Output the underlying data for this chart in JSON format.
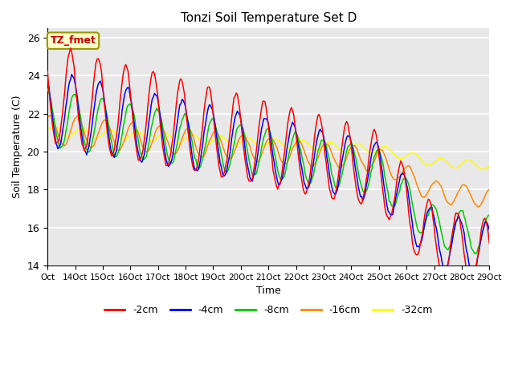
{
  "title": "Tonzi Soil Temperature Set D",
  "xlabel": "Time",
  "ylabel": "Soil Temperature (C)",
  "ylim": [
    14,
    26.5
  ],
  "xlim_days": [
    13,
    29
  ],
  "series_colors": [
    "#ff0000",
    "#0000ff",
    "#00cc00",
    "#ff8800",
    "#ffff00"
  ],
  "series_labels": [
    "-2cm",
    "-4cm",
    "-8cm",
    "-16cm",
    "-32cm"
  ],
  "annotation_text": "TZ_fmet",
  "annotation_color": "#cc0000",
  "annotation_bg": "#ffffcc",
  "annotation_border": "#999900",
  "background_color": "#e8e8e8",
  "grid_color": "#ffffff",
  "yticks": [
    14,
    16,
    18,
    20,
    22,
    24,
    26
  ]
}
